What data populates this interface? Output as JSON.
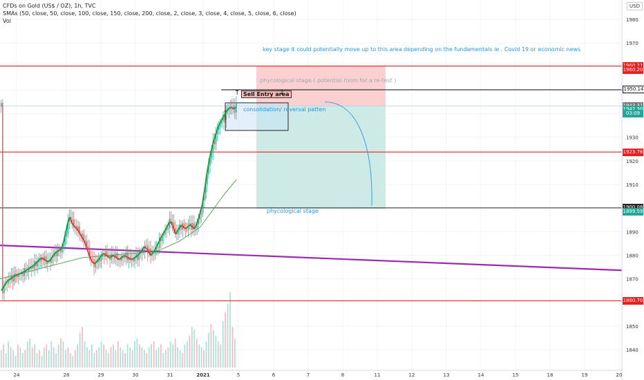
{
  "header": {
    "symbol": "CFDs on Gold (US$ / OZ), 1h, TVC",
    "sma_line": "SMAs (50, close, 50, close, 100, close, 150, close, 200, close, 2, close, 3, close, 4, close, 5, close, 6, close)",
    "vol_label": "Vol"
  },
  "currency": "USD",
  "annotations": {
    "key_stage": "key stage it could potentially move up to this area  depending on the fundamentals ie . Covid 19 or economic news",
    "phycological_top": "phycological stage ( potential room for a re-test )",
    "sell_entry": "Sell Entry area",
    "consolidation": "consolidation/ reversal patten",
    "phycological_bottom": "phycological stage"
  },
  "price_badges": [
    {
      "label": "1960.21",
      "value": 1960.21,
      "color": "#e91e1e"
    },
    {
      "label": "1960.20",
      "value": 1958.6,
      "color": "#e91e1e"
    },
    {
      "label": "1950.14",
      "value": 1950.14,
      "color": "#ffffff"
    },
    {
      "label": "1943.31",
      "value": 1943.31,
      "color": "#777777"
    },
    {
      "label": "1942.30",
      "value": 1941.7,
      "color": "#26a69a"
    },
    {
      "label": "03:09",
      "value": 1940.0,
      "color": "#26a69a"
    },
    {
      "label": "1923.76",
      "value": 1923.76,
      "color": "#e91e1e"
    },
    {
      "label": "1900.08",
      "value": 1900.08,
      "color": "#222222"
    },
    {
      "label": "1899.59",
      "value": 1898.4,
      "color": "#26a69a"
    },
    {
      "label": "1860.70",
      "value": 1860.7,
      "color": "#e91e1e"
    }
  ],
  "chart_data": {
    "type": "candlestick",
    "ylim": [
      1834,
      1983
    ],
    "y_ticks": [
      1840,
      1850,
      1860,
      1870,
      1880,
      1890,
      1900,
      1910,
      1920,
      1930,
      1940,
      1950,
      1960,
      1970,
      1980
    ],
    "x_ticks": [
      "24",
      "28",
      "29",
      "30",
      "31",
      "2021",
      "5",
      "6",
      "7",
      "8",
      "11",
      "12",
      "13",
      "14",
      "15",
      "18",
      "19",
      "20"
    ],
    "horizontal_levels": [
      {
        "value": 1960.21,
        "color": "#e91e1e"
      },
      {
        "value": 1950.14,
        "color": "#222222",
        "from_x": 320
      },
      {
        "value": 1943.31,
        "color": "#b0cfe0"
      },
      {
        "value": 1923.76,
        "color": "#e91e1e"
      },
      {
        "value": 1900.08,
        "color": "#222222"
      },
      {
        "value": 1860.7,
        "color": "#e91e1e"
      }
    ],
    "trendline": {
      "from": [
        0,
        1884.2
      ],
      "to": [
        900,
        1873.6
      ],
      "color": "#9c27b0"
    },
    "short_position": {
      "entry": 1943.3,
      "stop": 1960.2,
      "target": 1899.6,
      "x_start": 371,
      "x_end": 558
    },
    "price_path": [
      [
        2,
        1865
      ],
      [
        10,
        1869
      ],
      [
        20,
        1871
      ],
      [
        35,
        1873
      ],
      [
        50,
        1876
      ],
      [
        60,
        1879
      ],
      [
        70,
        1877
      ],
      [
        80,
        1881
      ],
      [
        90,
        1883
      ],
      [
        97,
        1892
      ],
      [
        100,
        1897
      ],
      [
        105,
        1893
      ],
      [
        112,
        1891
      ],
      [
        118,
        1888
      ],
      [
        124,
        1885
      ],
      [
        130,
        1879
      ],
      [
        136,
        1876
      ],
      [
        142,
        1878
      ],
      [
        150,
        1881
      ],
      [
        158,
        1879
      ],
      [
        165,
        1880
      ],
      [
        172,
        1878
      ],
      [
        180,
        1880
      ],
      [
        190,
        1878
      ],
      [
        200,
        1880
      ],
      [
        210,
        1884
      ],
      [
        218,
        1880
      ],
      [
        224,
        1882
      ],
      [
        232,
        1887
      ],
      [
        240,
        1891
      ],
      [
        247,
        1895
      ],
      [
        254,
        1889
      ],
      [
        262,
        1893
      ],
      [
        268,
        1891
      ],
      [
        275,
        1893
      ],
      [
        282,
        1891
      ],
      [
        288,
        1896
      ],
      [
        294,
        1903
      ],
      [
        298,
        1912
      ],
      [
        302,
        1919
      ],
      [
        306,
        1925
      ],
      [
        310,
        1929
      ],
      [
        314,
        1933
      ],
      [
        318,
        1936
      ],
      [
        322,
        1938
      ],
      [
        326,
        1940
      ],
      [
        330,
        1942
      ],
      [
        334,
        1943
      ],
      [
        338,
        1942
      ],
      [
        342,
        1943
      ]
    ],
    "sma_path": [
      [
        0,
        1870
      ],
      [
        40,
        1873
      ],
      [
        80,
        1876
      ],
      [
        120,
        1879
      ],
      [
        160,
        1880
      ],
      [
        200,
        1881
      ],
      [
        230,
        1882
      ],
      [
        260,
        1886
      ],
      [
        290,
        1892
      ],
      [
        310,
        1900
      ],
      [
        325,
        1906
      ],
      [
        342,
        1912
      ]
    ],
    "volume": [
      6,
      8,
      5,
      9,
      7,
      6,
      4,
      8,
      7,
      5,
      6,
      9,
      10,
      7,
      8,
      5,
      6,
      4,
      7,
      8,
      6,
      9,
      7,
      5,
      8,
      10,
      9,
      6,
      7,
      5,
      4,
      6,
      8,
      12,
      14,
      9,
      7,
      6,
      8,
      5,
      6,
      7,
      9,
      8,
      6,
      5,
      7,
      8,
      6,
      9,
      7,
      6,
      5,
      8,
      7,
      6,
      9,
      10,
      8,
      7,
      6,
      5,
      7,
      8,
      9,
      6,
      7,
      8,
      5,
      6,
      7,
      9,
      8,
      10,
      7,
      6,
      5,
      8,
      9,
      11,
      14,
      13,
      10,
      8,
      7,
      6,
      9,
      12,
      15,
      13,
      11,
      9,
      8,
      16,
      19,
      22,
      26,
      14,
      10
    ]
  }
}
